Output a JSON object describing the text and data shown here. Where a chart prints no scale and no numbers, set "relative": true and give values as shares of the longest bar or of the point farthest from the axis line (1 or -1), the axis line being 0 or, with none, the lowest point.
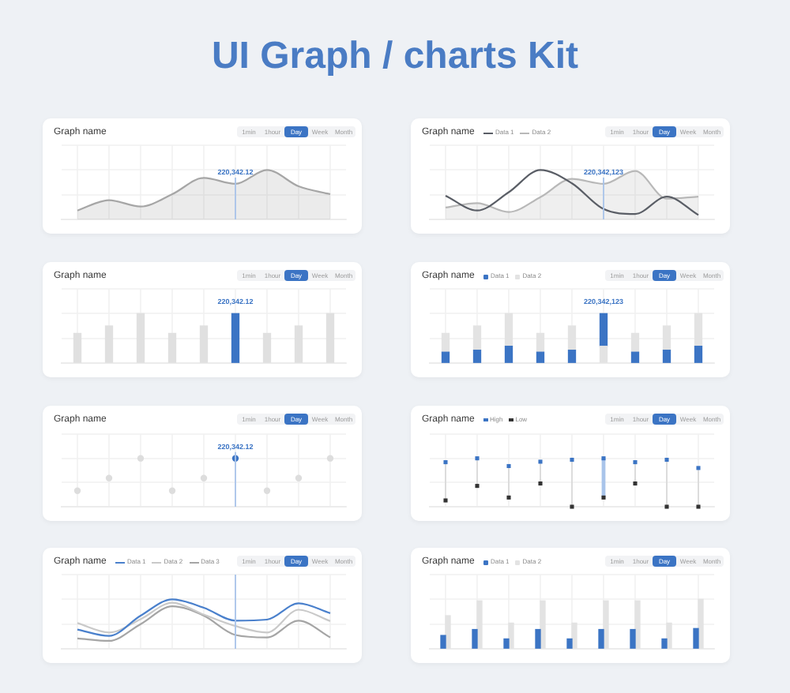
{
  "chart_data": [
    {
      "type": "other",
      "title": "UI Graph / charts Kit"
    },
    {
      "type": "area",
      "title": "Graph name",
      "categories": [
        null,
        null,
        null,
        null,
        null,
        null,
        null,
        null,
        null
      ],
      "series": [
        {
          "color": "#a6a6a6",
          "values": [
            0.18,
            0.39,
            0.26,
            0.51,
            0.84,
            0.72,
            1,
            0.67,
            0.51
          ]
        }
      ],
      "relative": true,
      "grid": true,
      "annotations": [
        "1min",
        "1hour",
        "Day",
        "Week",
        "Month",
        {
          "text": "220,342.12",
          "y": 0.72
        }
      ]
    },
    {
      "type": "line",
      "title": "Graph name",
      "categories": [
        null,
        null,
        null,
        null,
        null,
        null,
        null,
        null,
        null
      ],
      "series": [
        {
          "name": "Data 1",
          "color": "#5a5e66",
          "values": [
            0.48,
            0.18,
            0.55,
            1,
            0.73,
            0.21,
            0.11,
            0.46,
            0.09
          ]
        },
        {
          "name": "Data 2",
          "type": "area",
          "color": "#b8b8b8",
          "values": [
            0.24,
            0.33,
            0.15,
            0.45,
            0.82,
            0.72,
            0.98,
            0.42,
            0.46
          ]
        }
      ],
      "relative": true,
      "grid": true,
      "legend": "top left",
      "annotations": [
        "1min",
        "1hour",
        "Day",
        "Week",
        "Month",
        {
          "text": "220,342,123",
          "y": 0.72
        }
      ]
    },
    {
      "type": "bar",
      "title": "Graph name",
      "categories": [
        null,
        null,
        null,
        null,
        null,
        null,
        null,
        null,
        null
      ],
      "values": [
        0.6,
        0.75,
        1,
        0.6,
        0.75,
        1,
        0.6,
        0.75,
        1
      ],
      "colors": [
        "#e0e0e0",
        "#e0e0e0",
        "#e0e0e0",
        "#e0e0e0",
        "#e0e0e0",
        "#3b74c4",
        "#e0e0e0",
        "#e0e0e0",
        "#e0e0e0"
      ],
      "relative": true,
      "grid": true,
      "annotations": [
        "1min",
        "1hour",
        "Day",
        "Week",
        "Month",
        {
          "text": "220,342.12",
          "y": 1
        }
      ]
    },
    {
      "type": "bar",
      "title": "Graph name",
      "categories": [
        null,
        null,
        null,
        null,
        null,
        null,
        null,
        null,
        null
      ],
      "stacked": true,
      "series": [
        {
          "name": "Data 1",
          "color": "#3b74c4",
          "colors": [
            "#3b74c4",
            "#3b74c4",
            "#3b74c4",
            "#3b74c4",
            "#3b74c4",
            "#e3e3e3",
            "#3b74c4",
            "#3b74c4",
            "#3b74c4"
          ],
          "values": [
            0.22,
            0.26,
            0.34,
            0.22,
            0.26,
            0.34,
            0.22,
            0.26,
            0.34
          ]
        },
        {
          "name": "Data 2",
          "color": "#e3e3e3",
          "colors": [
            "#e3e3e3",
            "#e3e3e3",
            "#e3e3e3",
            "#e3e3e3",
            "#e3e3e3",
            "#3b74c4",
            "#e3e3e3",
            "#e3e3e3",
            "#e3e3e3"
          ],
          "values": [
            0.38,
            0.49,
            0.66,
            0.38,
            0.49,
            0.66,
            0.38,
            0.49,
            0.66
          ]
        }
      ],
      "relative": true,
      "grid": true,
      "legend": "top left",
      "annotations": [
        "1min",
        "1hour",
        "Day",
        "Week",
        "Month",
        {
          "text": "220,342,123",
          "y": 1
        }
      ]
    },
    {
      "type": "scatter",
      "title": "Graph name",
      "categories": [
        null,
        null,
        null,
        null,
        null,
        null,
        null,
        null,
        null
      ],
      "values": [
        0.33,
        0.59,
        1,
        0.33,
        0.59,
        1,
        0.33,
        0.59,
        1
      ],
      "colors": [
        "#dddddd",
        "#dddddd",
        "#dddddd",
        "#dddddd",
        "#dddddd",
        "#3b74c4",
        "#dddddd",
        "#dddddd",
        "#dddddd"
      ],
      "marker": "circle",
      "relative": true,
      "grid": true,
      "annotations": [
        "1min",
        "1hour",
        "Day",
        "Week",
        "Month",
        {
          "text": "220,342.12",
          "y": 1
        }
      ]
    },
    {
      "type": "scatter",
      "title": "Graph name",
      "categories": [
        null,
        null,
        null,
        null,
        null,
        null,
        null,
        null,
        null
      ],
      "series": [
        {
          "name": "High",
          "color": "#3b74c4",
          "values": [
            0.92,
            1,
            0.84,
            0.93,
            0.97,
            1,
            0.92,
            0.97,
            0.8
          ]
        },
        {
          "name": "Low",
          "color": "#333333",
          "values": [
            0.13,
            0.43,
            0.19,
            0.48,
            0,
            0.19,
            0.48,
            0,
            0
          ]
        }
      ],
      "marker": "square",
      "relative": true,
      "grid": true,
      "legend": "top left",
      "annotations": [
        "1min",
        "1hour",
        "Day",
        "Week",
        "Month"
      ]
    },
    {
      "type": "line",
      "title": "Graph name",
      "categories": [
        null,
        null,
        null,
        null,
        null,
        null,
        null,
        null,
        null
      ],
      "series": [
        {
          "name": "Data 1",
          "color": "#4a80cc",
          "values": [
            0.39,
            0.26,
            0.67,
            1,
            0.83,
            0.57,
            0.59,
            0.92,
            0.72
          ]
        },
        {
          "name": "Data 2",
          "color": "#c9c9c9",
          "values": [
            0.52,
            0.33,
            0.6,
            0.93,
            0.69,
            0.46,
            0.33,
            0.79,
            0.56
          ]
        },
        {
          "name": "Data 3",
          "color": "#a5a5a5",
          "values": [
            0.21,
            0.16,
            0.5,
            0.86,
            0.67,
            0.28,
            0.23,
            0.57,
            0.23
          ]
        }
      ],
      "relative": true,
      "grid": true,
      "legend": "top left",
      "annotations": [
        "1min",
        "1hour",
        "Day",
        "Week",
        "Month"
      ]
    },
    {
      "type": "bar",
      "title": "Graph name",
      "categories": [
        null,
        null,
        null,
        null,
        null,
        null,
        null,
        null,
        null
      ],
      "series": [
        {
          "name": "Data 1",
          "color": "#3b74c4",
          "values": [
            0.27,
            0.39,
            0.2,
            0.39,
            0.2,
            0.39,
            0.39,
            0.2,
            0.41
          ]
        },
        {
          "name": "Data 2",
          "color": "#e3e3e3",
          "values": [
            0.67,
            0.97,
            0.52,
            0.97,
            0.52,
            0.97,
            0.97,
            0.52,
            1
          ]
        }
      ],
      "relative": true,
      "grid": true,
      "legend": "top left",
      "annotations": [
        "1min",
        "1hour",
        "Day",
        "Week",
        "Month"
      ]
    }
  ]
}
